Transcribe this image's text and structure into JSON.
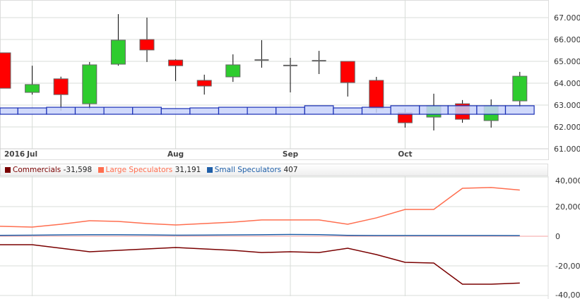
{
  "chart_data": [
    {
      "type": "candlestick",
      "y_axis": {
        "position": "right",
        "ylim": [
          61,
          67.5
        ],
        "ticks": [
          "61.000",
          "62.000",
          "63.000",
          "64.000",
          "65.000",
          "66.000",
          "67.000"
        ]
      },
      "x_tick_labels": [
        {
          "index": 0,
          "label": "2016"
        },
        {
          "index": 1,
          "label": "Jul"
        },
        {
          "index": 6,
          "label": "Aug"
        },
        {
          "index": 10,
          "label": "Sep"
        },
        {
          "index": 14,
          "label": "Oct"
        }
      ],
      "grid": true,
      "colors": {
        "up": "#2ecc2e",
        "down": "#ff0000",
        "band": "#c8d2fa",
        "band_edge": "#1a2fb5"
      },
      "candles": [
        {
          "o": 65.39,
          "h": 65.4,
          "l": 63.77,
          "c": 63.77
        },
        {
          "o": 63.58,
          "h": 64.8,
          "l": 63.48,
          "c": 63.94
        },
        {
          "o": 64.2,
          "h": 64.3,
          "l": 62.74,
          "c": 63.48
        },
        {
          "o": 63.06,
          "h": 64.97,
          "l": 62.81,
          "c": 64.84
        },
        {
          "o": 64.87,
          "h": 67.16,
          "l": 64.8,
          "c": 65.97
        },
        {
          "o": 66.0,
          "h": 67.0,
          "l": 64.97,
          "c": 65.52
        },
        {
          "o": 65.06,
          "h": 65.1,
          "l": 64.1,
          "c": 64.8
        },
        {
          "o": 64.13,
          "h": 64.39,
          "l": 63.48,
          "c": 63.87
        },
        {
          "o": 64.29,
          "h": 65.32,
          "l": 64.06,
          "c": 64.84
        },
        {
          "o": 65.06,
          "h": 65.97,
          "l": 64.71,
          "c": 65.06
        },
        {
          "o": 64.81,
          "h": 65.16,
          "l": 63.58,
          "c": 64.81
        },
        {
          "o": 65.03,
          "h": 65.48,
          "l": 64.42,
          "c": 65.03
        },
        {
          "o": 65.0,
          "h": 65.0,
          "l": 63.39,
          "c": 64.03
        },
        {
          "o": 64.13,
          "h": 64.29,
          "l": 62.65,
          "c": 62.84
        },
        {
          "o": 62.65,
          "h": 62.84,
          "l": 61.97,
          "c": 62.19
        },
        {
          "o": 62.45,
          "h": 63.52,
          "l": 61.84,
          "c": 62.97
        },
        {
          "o": 63.06,
          "h": 63.23,
          "l": 62.19,
          "c": 62.35
        },
        {
          "o": 62.29,
          "h": 63.26,
          "l": 61.97,
          "c": 62.97
        },
        {
          "o": 63.19,
          "h": 64.52,
          "l": 62.9,
          "c": 64.32
        }
      ],
      "band_base": 62.58,
      "band_tops": [
        62.87,
        62.87,
        62.9,
        62.9,
        62.9,
        62.9,
        62.84,
        62.87,
        62.9,
        62.9,
        62.9,
        62.97,
        62.87,
        62.9,
        62.97,
        62.97,
        62.97,
        62.97,
        62.97
      ]
    },
    {
      "type": "line",
      "y_axis": {
        "position": "right",
        "ylim": [
          -40000,
          40000
        ],
        "ticks": [
          "-40,000",
          "-20,000",
          "0",
          "20,000",
          "40,000"
        ]
      },
      "grid": true,
      "legend": "top-left",
      "series": [
        {
          "name": "Commercials",
          "latest": "-31,598",
          "color": "#7a0000",
          "values": [
            -5700,
            -5700,
            -8100,
            -10500,
            -9500,
            -8600,
            -7600,
            -8600,
            -9500,
            -11000,
            -10500,
            -11000,
            -8100,
            -12400,
            -17600,
            -18100,
            -32400,
            -32400,
            -31598
          ]
        },
        {
          "name": "Large Speculators",
          "latest": "31,191",
          "color": "#ff6e4f",
          "values": [
            6700,
            6200,
            8100,
            10500,
            10000,
            8600,
            7600,
            8600,
            9500,
            11000,
            11000,
            11000,
            8100,
            12400,
            18100,
            18100,
            32400,
            32900,
            31191
          ]
        },
        {
          "name": "Small Speculators",
          "latest": "407",
          "color": "#1f5fa8",
          "values": [
            600,
            700,
            900,
            1000,
            1000,
            900,
            700,
            800,
            900,
            1000,
            1200,
            1100,
            600,
            500,
            500,
            500,
            500,
            500,
            407
          ]
        }
      ]
    }
  ]
}
